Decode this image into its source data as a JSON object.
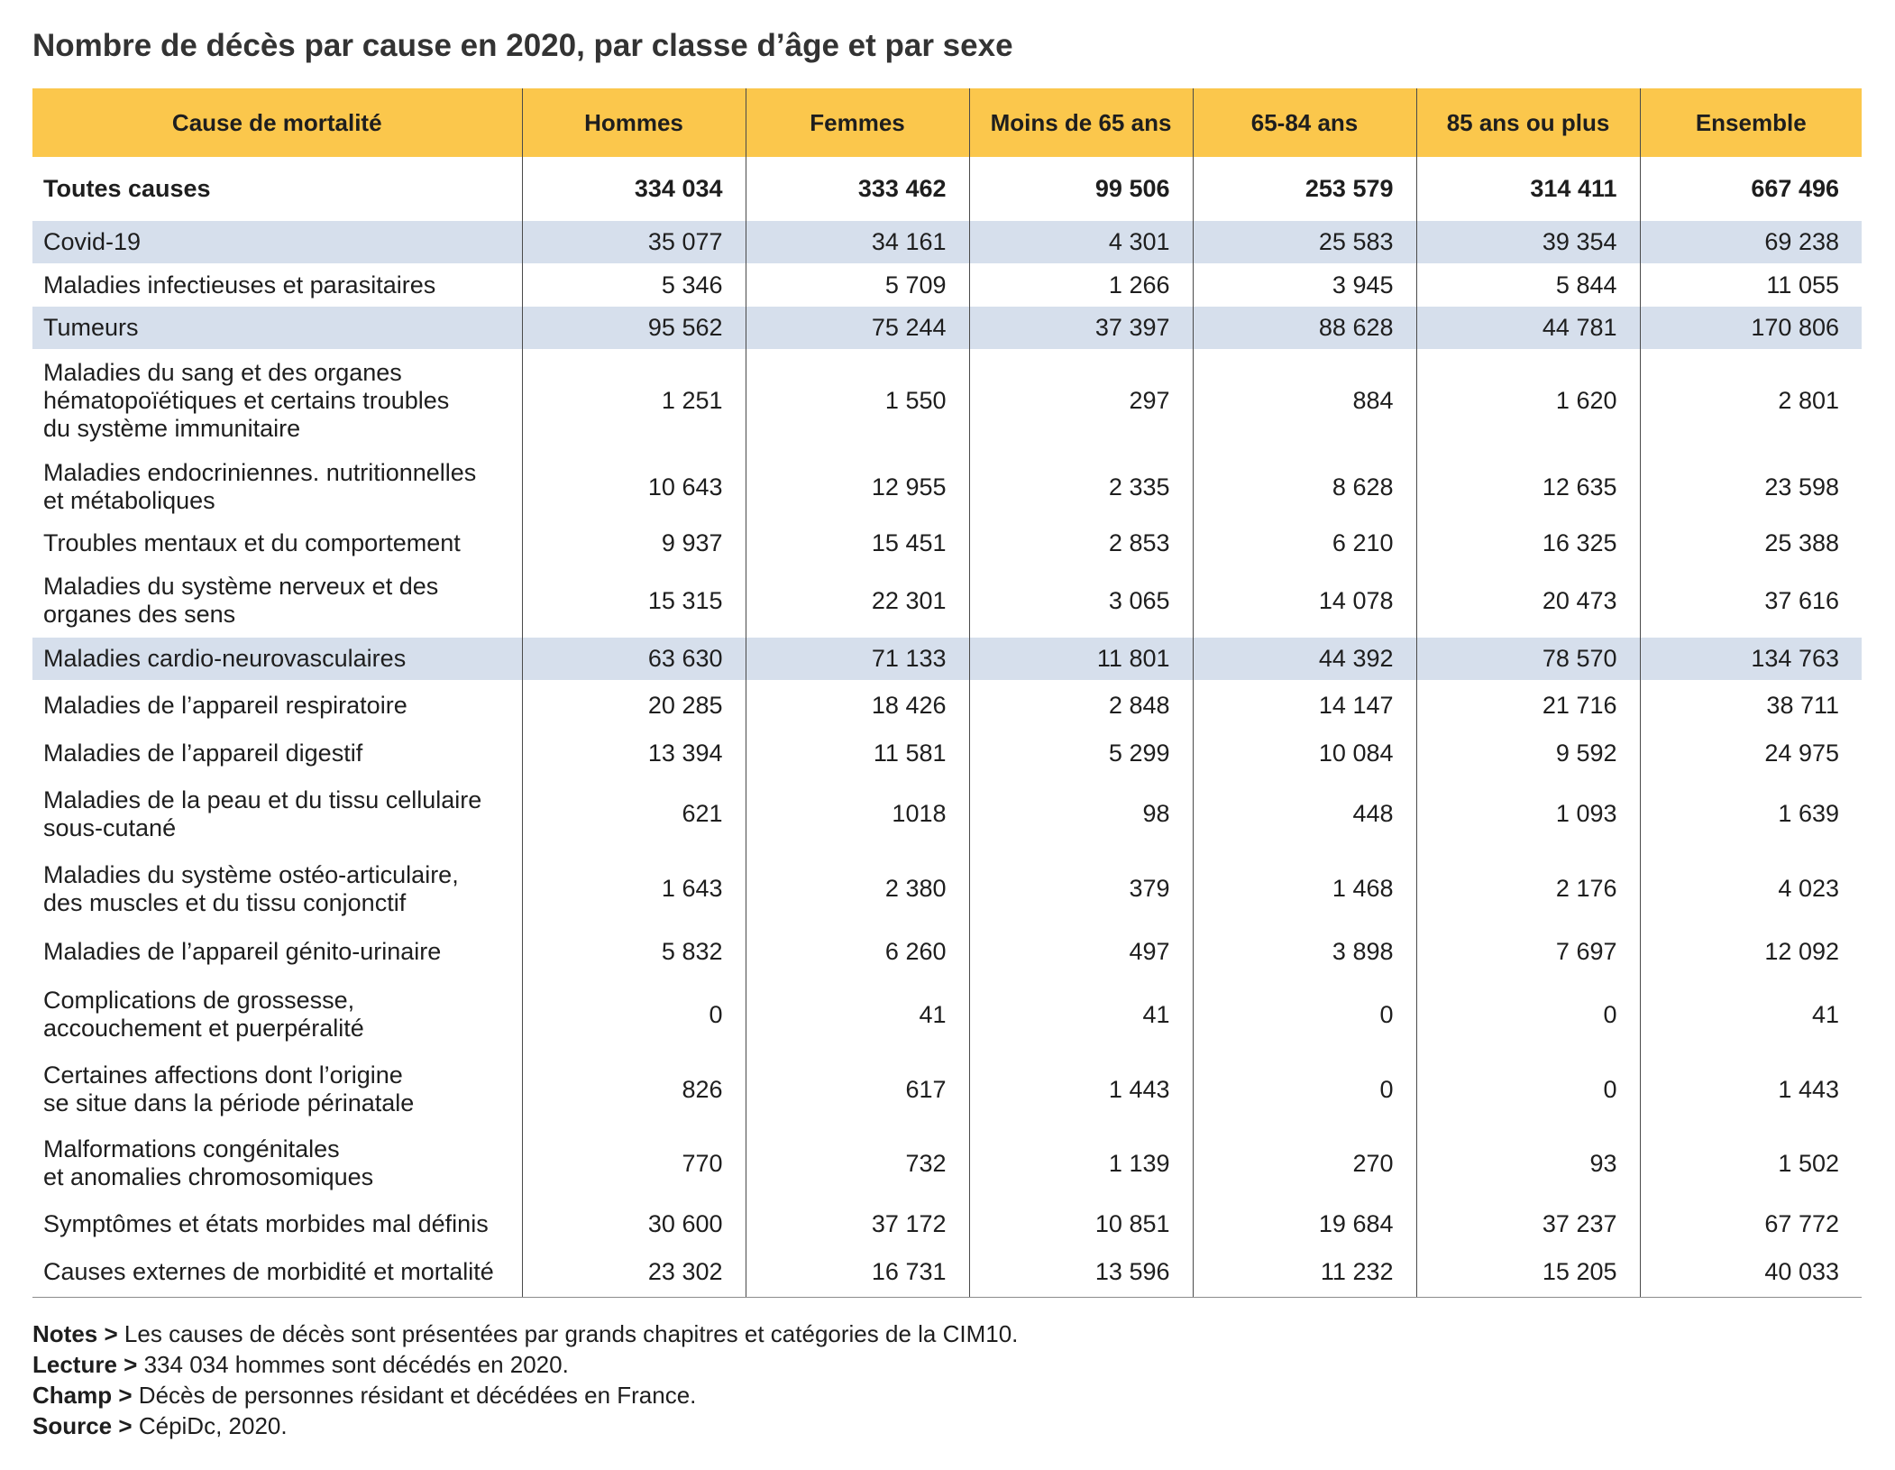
{
  "colors": {
    "header_bg": "#FBC74C",
    "highlight_bg": "#D6DFEC",
    "text": "#1E1E1E",
    "title": "#333333",
    "rule": "#4A4A4A",
    "bottom_rule": "#8C8C8C"
  },
  "chart_data": {
    "type": "table",
    "title": "Nombre de décès par cause en 2020, par classe d’âge et par sexe",
    "columns": [
      "Cause de mortalité",
      "Hommes",
      "Femmes",
      "Moins de 65 ans",
      "65-84 ans",
      "85 ans ou plus",
      "Ensemble"
    ],
    "rows": [
      {
        "label": [
          "Toutes causes"
        ],
        "values": [
          "334 034",
          "333 462",
          "99 506",
          "253 579",
          "314 411",
          "667 496"
        ],
        "bold": true
      },
      {
        "label": [
          "Covid-19"
        ],
        "values": [
          "35 077",
          "34 161",
          "4 301",
          "25 583",
          "39 354",
          "69 238"
        ],
        "highlight": true
      },
      {
        "label": [
          "Maladies infectieuses et parasitaires"
        ],
        "values": [
          "5 346",
          "5 709",
          "1 266",
          "3 945",
          "5 844",
          "11 055"
        ]
      },
      {
        "label": [
          "Tumeurs"
        ],
        "values": [
          "95 562",
          "75 244",
          "37 397",
          "88 628",
          "44 781",
          "170 806"
        ],
        "highlight": true
      },
      {
        "label": [
          "Maladies du sang et des organes",
          "hématopoïétiques et certains troubles",
          "du système immunitaire"
        ],
        "values": [
          "1 251",
          "1 550",
          "297",
          "884",
          "1 620",
          "2 801"
        ]
      },
      {
        "label": [
          "Maladies endocriniennes. nutritionnelles",
          "et métaboliques"
        ],
        "values": [
          "10 643",
          "12 955",
          "2 335",
          "8 628",
          "12 635",
          "23 598"
        ]
      },
      {
        "label": [
          "Troubles mentaux et du comportement"
        ],
        "values": [
          "9 937",
          "15 451",
          "2 853",
          "6 210",
          "16 325",
          "25 388"
        ]
      },
      {
        "label": [
          "Maladies du système nerveux et des",
          "organes des sens"
        ],
        "values": [
          "15 315",
          "22 301",
          "3 065",
          "14 078",
          "20 473",
          "37 616"
        ]
      },
      {
        "label": [
          "Maladies cardio-neurovasculaires"
        ],
        "values": [
          "63 630",
          "71 133",
          "11 801",
          "44 392",
          "78 570",
          "134 763"
        ],
        "highlight": true
      },
      {
        "label": [
          "Maladies de l’appareil respiratoire"
        ],
        "values": [
          "20 285",
          "18 426",
          "2 848",
          "14 147",
          "21 716",
          "38 711"
        ]
      },
      {
        "label": [
          "Maladies de l’appareil digestif"
        ],
        "values": [
          "13 394",
          "11 581",
          "5 299",
          "10 084",
          "9 592",
          "24 975"
        ]
      },
      {
        "label": [
          "Maladies de la peau et du tissu cellulaire",
          "sous-cutané"
        ],
        "values": [
          "621",
          "1018",
          "98",
          "448",
          "1 093",
          "1 639"
        ]
      },
      {
        "label": [
          "Maladies du système ostéo-articulaire,",
          "des muscles et du tissu conjonctif"
        ],
        "values": [
          "1 643",
          "2 380",
          "379",
          "1 468",
          "2 176",
          "4 023"
        ]
      },
      {
        "label": [
          "Maladies de l’appareil génito-urinaire"
        ],
        "values": [
          "5 832",
          "6 260",
          "497",
          "3 898",
          "7 697",
          "12 092"
        ]
      },
      {
        "label": [
          "Complications de grossesse,",
          "accouchement et puerpéralité"
        ],
        "values": [
          "0",
          "41",
          "41",
          "0",
          "0",
          "41"
        ]
      },
      {
        "label": [
          "Certaines affections dont l’origine",
          "se situe dans la période périnatale"
        ],
        "values": [
          "826",
          "617",
          "1 443",
          "0",
          "0",
          "1 443"
        ]
      },
      {
        "label": [
          "Malformations congénitales",
          "et anomalies chromosomiques"
        ],
        "values": [
          "770",
          "732",
          "1 139",
          "270",
          "93",
          "1 502"
        ]
      },
      {
        "label": [
          "Symptômes et états morbides mal définis"
        ],
        "values": [
          "30 600",
          "37 172",
          "10 851",
          "19 684",
          "37 237",
          "67 772"
        ]
      },
      {
        "label": [
          "Causes externes de morbidité et mortalité"
        ],
        "values": [
          "23 302",
          "16 731",
          "13 596",
          "11 232",
          "15 205",
          "40 033"
        ]
      }
    ]
  },
  "notes": [
    {
      "key": "Notes >",
      "text": "Les causes de décès sont présentées par grands chapitres et catégories de la CIM10."
    },
    {
      "key": "Lecture >",
      "text": "334 034 hommes sont décédés en 2020."
    },
    {
      "key": "Champ >",
      "text": "Décès de personnes résidant et décédées en France."
    },
    {
      "key": "Source >",
      "text": "CépiDc, 2020."
    }
  ]
}
